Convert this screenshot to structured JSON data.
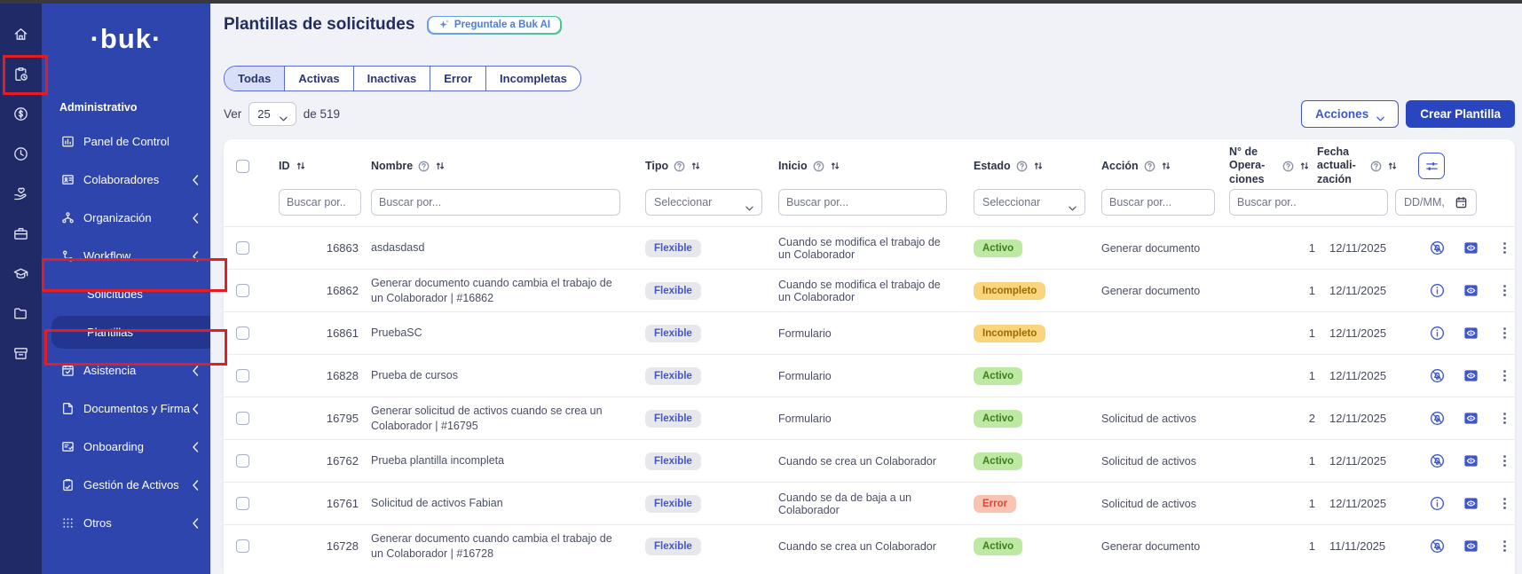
{
  "colors": {
    "rail_bg": "#1f2a66",
    "sidebar_bg": "#2e45ae",
    "active_item_bg": "#24358f",
    "accent_blue": "#3d56cc",
    "primary_button_bg": "#2946c0",
    "annotation_red": "#e51c23",
    "badge_activo_bg": "#bde9a2",
    "badge_incompleto_bg": "#fbd47e",
    "badge_error_bg": "#f9c3b2",
    "badge_tipo_bg": "#e7e8ec"
  },
  "sidebar": {
    "logo_text": "·buk·",
    "section_label": "Administrativo",
    "rail": [
      "home",
      "clipboard-clock",
      "coin",
      "clock",
      "hand-heart",
      "briefcase",
      "graduation-cap",
      "folder",
      "archive"
    ],
    "items": [
      {
        "icon": "dashboard",
        "label": "Panel de Control",
        "chevron": false,
        "sub": false,
        "active": false
      },
      {
        "icon": "id-card",
        "label": "Colaboradores",
        "chevron": true,
        "sub": false,
        "active": false
      },
      {
        "icon": "org-chart",
        "label": "Organización",
        "chevron": true,
        "sub": false,
        "active": false
      },
      {
        "icon": "workflow",
        "label": "Workflow",
        "chevron": true,
        "sub": false,
        "active": false
      },
      {
        "icon": null,
        "label": "Solicitudes",
        "chevron": false,
        "sub": true,
        "active": false
      },
      {
        "icon": null,
        "label": "Plantillas",
        "chevron": false,
        "sub": true,
        "active": true
      },
      {
        "icon": "calendar-check",
        "label": "Asistencia",
        "chevron": true,
        "sub": false,
        "active": false
      },
      {
        "icon": "document",
        "label": "Documentos y Firma",
        "chevron": true,
        "sub": false,
        "active": false
      },
      {
        "icon": "onboarding",
        "label": "Onboarding",
        "chevron": true,
        "sub": false,
        "active": false
      },
      {
        "icon": "clipboard",
        "label": "Gestión de Activos",
        "chevron": true,
        "sub": false,
        "active": false
      },
      {
        "icon": "grid-dots",
        "label": "Otros",
        "chevron": true,
        "sub": false,
        "active": false
      }
    ]
  },
  "header": {
    "title": "Plantillas de solicitudes",
    "ai_button_label": "Preguntale a Buk AI"
  },
  "tabs": {
    "selected": "Todas",
    "items": [
      "Todas",
      "Activas",
      "Inactivas",
      "Error",
      "Incompletas"
    ]
  },
  "toolbar": {
    "ver_label": "Ver",
    "page_size": "25",
    "total_label": "de 519",
    "acciones_label": "Acciones",
    "crear_label": "Crear Plantilla"
  },
  "table": {
    "columns": [
      {
        "key": "id",
        "label": "ID",
        "help": false,
        "sort": true,
        "wrap": false
      },
      {
        "key": "nombre",
        "label": "Nombre",
        "help": true,
        "sort": true,
        "wrap": false
      },
      {
        "key": "tipo",
        "label": "Tipo",
        "help": true,
        "sort": true,
        "wrap": false
      },
      {
        "key": "inicio",
        "label": "Inicio",
        "help": true,
        "sort": true,
        "wrap": false
      },
      {
        "key": "estado",
        "label": "Estado",
        "help": true,
        "sort": true,
        "wrap": false
      },
      {
        "key": "accion",
        "label": "Acción",
        "help": true,
        "sort": true,
        "wrap": false
      },
      {
        "key": "operaciones",
        "label": "N° de Opera-ciones",
        "help": true,
        "sort": true,
        "wrap": true
      },
      {
        "key": "fecha",
        "label": "Fecha actuali-zación",
        "help": true,
        "sort": true,
        "wrap": true
      }
    ],
    "filters": [
      {
        "key": "id",
        "kind": "input",
        "placeholder": "Buscar por.."
      },
      {
        "key": "nombre",
        "kind": "input",
        "placeholder": "Buscar por..."
      },
      {
        "key": "tipo",
        "kind": "select",
        "placeholder": "Seleccionar"
      },
      {
        "key": "inicio",
        "kind": "input",
        "placeholder": "Buscar por..."
      },
      {
        "key": "estado",
        "kind": "select",
        "placeholder": "Seleccionar"
      },
      {
        "key": "accion",
        "kind": "input",
        "placeholder": "Buscar por..."
      },
      {
        "key": "operaciones",
        "kind": "input",
        "placeholder": "Buscar por.."
      },
      {
        "key": "fecha",
        "kind": "date",
        "placeholder": "DD/MM,"
      }
    ],
    "rows": [
      {
        "id": "16863",
        "nombre": "asdasdasd",
        "tipo": "Flexible",
        "inicio": "Cuando se modifica el trabajo de un Colaborador",
        "estado": "Activo",
        "accion": "Generar documento",
        "operaciones": "1",
        "fecha": "12/11/2025",
        "row_icon": "notifications-off"
      },
      {
        "id": "16862",
        "nombre": "Generar documento cuando cambia el trabajo de un Colaborador | #16862",
        "tipo": "Flexible",
        "inicio": "Cuando se modifica el trabajo de un Colaborador",
        "estado": "Incompleto",
        "accion": "Generar documento",
        "operaciones": "1",
        "fecha": "12/11/2025",
        "row_icon": "info"
      },
      {
        "id": "16861",
        "nombre": "PruebaSC",
        "tipo": "Flexible",
        "inicio": "Formulario",
        "estado": "Incompleto",
        "accion": "",
        "operaciones": "1",
        "fecha": "12/11/2025",
        "row_icon": "info"
      },
      {
        "id": "16828",
        "nombre": "Prueba de cursos",
        "tipo": "Flexible",
        "inicio": "Formulario",
        "estado": "Activo",
        "accion": "",
        "operaciones": "1",
        "fecha": "12/11/2025",
        "row_icon": "notifications-off"
      },
      {
        "id": "16795",
        "nombre": "Generar solicitud de activos cuando se crea un Colaborador | #16795",
        "tipo": "Flexible",
        "inicio": "Formulario",
        "estado": "Activo",
        "accion": "Solicitud de activos",
        "operaciones": "2",
        "fecha": "12/11/2025",
        "row_icon": "notifications-off"
      },
      {
        "id": "16762",
        "nombre": "Prueba plantilla incompleta",
        "tipo": "Flexible",
        "inicio": "Cuando se crea un Colaborador",
        "estado": "Activo",
        "accion": "Solicitud de activos",
        "operaciones": "1",
        "fecha": "12/11/2025",
        "row_icon": "notifications-off"
      },
      {
        "id": "16761",
        "nombre": "Solicitud de activos Fabian",
        "tipo": "Flexible",
        "inicio": "Cuando se da de baja a un Colaborador",
        "estado": "Error",
        "accion": "Solicitud de activos",
        "operaciones": "1",
        "fecha": "12/11/2025",
        "row_icon": "info"
      },
      {
        "id": "16728",
        "nombre": "Generar documento cuando cambia el trabajo de un Colaborador | #16728",
        "tipo": "Flexible",
        "inicio": "Cuando se crea un Colaborador",
        "estado": "Activo",
        "accion": "Generar documento",
        "operaciones": "1",
        "fecha": "11/11/2025",
        "row_icon": "notifications-off"
      }
    ]
  }
}
